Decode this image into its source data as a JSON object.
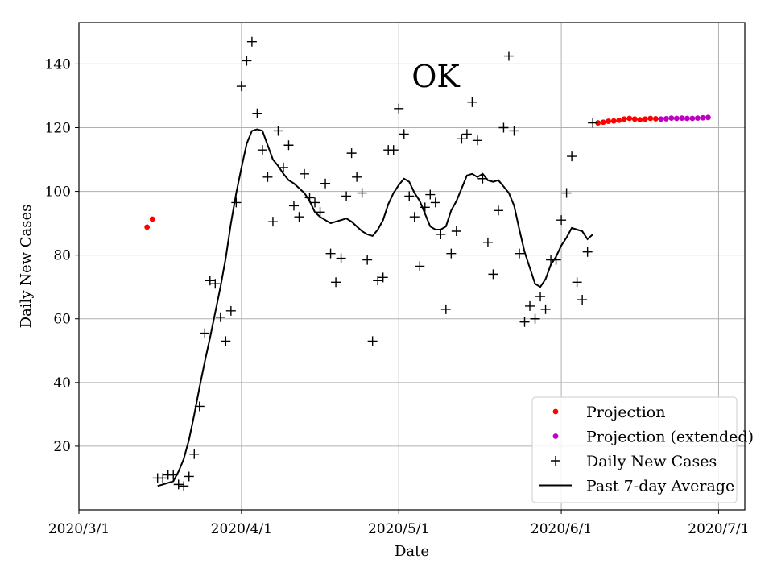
{
  "chart_data": {
    "type": "scatter",
    "title": "OK",
    "xlabel": "Date",
    "ylabel": "Daily New Cases",
    "xlim": [
      "2020-03-01",
      "2020-07-06"
    ],
    "ylim": [
      0,
      153
    ],
    "x_ticks": [
      "2020-03-01",
      "2020-04-01",
      "2020-05-01",
      "2020-06-01",
      "2020-07-01"
    ],
    "x_tick_labels": [
      "2020/3/1",
      "2020/4/1",
      "2020/5/1",
      "2020/6/1",
      "2020/7/1"
    ],
    "y_ticks": [
      20,
      40,
      60,
      80,
      100,
      120,
      140
    ],
    "y_tick_labels": [
      "20",
      "40",
      "60",
      "80",
      "100",
      "120",
      "140"
    ],
    "grid": true,
    "legend_position": "bottom-right",
    "series": [
      {
        "name": "Projection",
        "kind": "dots",
        "color": "#ff0000",
        "points": [
          [
            "2020-03-14",
            88.8
          ],
          [
            "2020-03-15",
            91.3
          ],
          [
            "2020-06-08",
            121.5
          ],
          [
            "2020-06-09",
            121.7
          ],
          [
            "2020-06-10",
            122.0
          ],
          [
            "2020-06-11",
            122.1
          ],
          [
            "2020-06-12",
            122.3
          ],
          [
            "2020-06-13",
            122.7
          ],
          [
            "2020-06-14",
            122.9
          ],
          [
            "2020-06-15",
            122.7
          ],
          [
            "2020-06-16",
            122.5
          ],
          [
            "2020-06-17",
            122.7
          ],
          [
            "2020-06-18",
            122.9
          ],
          [
            "2020-06-19",
            122.8
          ]
        ]
      },
      {
        "name": "Projection (extended)",
        "kind": "dots",
        "color": "#bf00bf",
        "points": [
          [
            "2020-06-20",
            122.7
          ],
          [
            "2020-06-21",
            122.8
          ],
          [
            "2020-06-22",
            123.0
          ],
          [
            "2020-06-23",
            122.9
          ],
          [
            "2020-06-24",
            123.0
          ],
          [
            "2020-06-25",
            122.9
          ],
          [
            "2020-06-26",
            122.9
          ],
          [
            "2020-06-27",
            123.0
          ],
          [
            "2020-06-28",
            123.1
          ],
          [
            "2020-06-29",
            123.2
          ]
        ]
      },
      {
        "name": "Daily New Cases",
        "kind": "plus",
        "color": "#000000",
        "points": [
          [
            "2020-03-16",
            10
          ],
          [
            "2020-03-17",
            10
          ],
          [
            "2020-03-18",
            11
          ],
          [
            "2020-03-19",
            11
          ],
          [
            "2020-03-20",
            8
          ],
          [
            "2020-03-21",
            7.5
          ],
          [
            "2020-03-22",
            10.5
          ],
          [
            "2020-03-23",
            17.5
          ],
          [
            "2020-03-24",
            32.5
          ],
          [
            "2020-03-25",
            55.5
          ],
          [
            "2020-03-26",
            72
          ],
          [
            "2020-03-27",
            71
          ],
          [
            "2020-03-28",
            60.5
          ],
          [
            "2020-03-29",
            53
          ],
          [
            "2020-03-30",
            62.5
          ],
          [
            "2020-03-31",
            96.5
          ],
          [
            "2020-04-01",
            133
          ],
          [
            "2020-04-02",
            141
          ],
          [
            "2020-04-03",
            147
          ],
          [
            "2020-04-04",
            124.5
          ],
          [
            "2020-04-05",
            113
          ],
          [
            "2020-04-06",
            104.5
          ],
          [
            "2020-04-07",
            90.5
          ],
          [
            "2020-04-08",
            119
          ],
          [
            "2020-04-09",
            107.5
          ],
          [
            "2020-04-10",
            114.5
          ],
          [
            "2020-04-11",
            95.5
          ],
          [
            "2020-04-12",
            92
          ],
          [
            "2020-04-13",
            105.5
          ],
          [
            "2020-04-14",
            98
          ],
          [
            "2020-04-15",
            96.5
          ],
          [
            "2020-04-16",
            93.5
          ],
          [
            "2020-04-17",
            102.5
          ],
          [
            "2020-04-18",
            80.5
          ],
          [
            "2020-04-19",
            71.5
          ],
          [
            "2020-04-20",
            79
          ],
          [
            "2020-04-21",
            98.5
          ],
          [
            "2020-04-22",
            112
          ],
          [
            "2020-04-23",
            104.5
          ],
          [
            "2020-04-24",
            99.5
          ],
          [
            "2020-04-25",
            78.5
          ],
          [
            "2020-04-26",
            53
          ],
          [
            "2020-04-27",
            72
          ],
          [
            "2020-04-28",
            73
          ],
          [
            "2020-04-29",
            113
          ],
          [
            "2020-04-30",
            113
          ],
          [
            "2020-05-01",
            126
          ],
          [
            "2020-05-02",
            118
          ],
          [
            "2020-05-03",
            98.5
          ],
          [
            "2020-05-04",
            92
          ],
          [
            "2020-05-05",
            76.5
          ],
          [
            "2020-05-06",
            95
          ],
          [
            "2020-05-07",
            99
          ],
          [
            "2020-05-08",
            96.5
          ],
          [
            "2020-05-09",
            86.5
          ],
          [
            "2020-05-10",
            63
          ],
          [
            "2020-05-11",
            80.5
          ],
          [
            "2020-05-12",
            87.5
          ],
          [
            "2020-05-13",
            116.5
          ],
          [
            "2020-05-14",
            118
          ],
          [
            "2020-05-15",
            128
          ],
          [
            "2020-05-16",
            116
          ],
          [
            "2020-05-17",
            104
          ],
          [
            "2020-05-18",
            84
          ],
          [
            "2020-05-19",
            74
          ],
          [
            "2020-05-20",
            94
          ],
          [
            "2020-05-21",
            120
          ],
          [
            "2020-05-22",
            142.5
          ],
          [
            "2020-05-23",
            119
          ],
          [
            "2020-05-24",
            80.5
          ],
          [
            "2020-05-25",
            59
          ],
          [
            "2020-05-26",
            64
          ],
          [
            "2020-05-27",
            60
          ],
          [
            "2020-05-28",
            67
          ],
          [
            "2020-05-29",
            63
          ],
          [
            "2020-05-30",
            78.5
          ],
          [
            "2020-05-31",
            78.5
          ],
          [
            "2020-06-01",
            91
          ],
          [
            "2020-06-02",
            99.5
          ],
          [
            "2020-06-03",
            111
          ],
          [
            "2020-06-04",
            71.5
          ],
          [
            "2020-06-05",
            66
          ],
          [
            "2020-06-06",
            81
          ],
          [
            "2020-06-07",
            121.5
          ]
        ]
      },
      {
        "name": "Past 7-day Average",
        "kind": "line",
        "color": "#000000",
        "points": [
          [
            "2020-03-16",
            7.5
          ],
          [
            "2020-03-17",
            8
          ],
          [
            "2020-03-18",
            8.5
          ],
          [
            "2020-03-19",
            9
          ],
          [
            "2020-03-20",
            12
          ],
          [
            "2020-03-21",
            16
          ],
          [
            "2020-03-22",
            22
          ],
          [
            "2020-03-23",
            30
          ],
          [
            "2020-03-24",
            38.5
          ],
          [
            "2020-03-25",
            46.5
          ],
          [
            "2020-03-26",
            54
          ],
          [
            "2020-03-27",
            62
          ],
          [
            "2020-03-28",
            70
          ],
          [
            "2020-03-29",
            79
          ],
          [
            "2020-03-30",
            90
          ],
          [
            "2020-03-31",
            99.5
          ],
          [
            "2020-04-01",
            107.5
          ],
          [
            "2020-04-02",
            115
          ],
          [
            "2020-04-03",
            119
          ],
          [
            "2020-04-04",
            119.5
          ],
          [
            "2020-04-05",
            119
          ],
          [
            "2020-04-06",
            114.5
          ],
          [
            "2020-04-07",
            110
          ],
          [
            "2020-04-08",
            108
          ],
          [
            "2020-04-09",
            105.5
          ],
          [
            "2020-04-10",
            103.5
          ],
          [
            "2020-04-11",
            102.5
          ],
          [
            "2020-04-12",
            101
          ],
          [
            "2020-04-13",
            99.5
          ],
          [
            "2020-04-14",
            97
          ],
          [
            "2020-04-15",
            93.5
          ],
          [
            "2020-04-16",
            92
          ],
          [
            "2020-04-17",
            91
          ],
          [
            "2020-04-18",
            90
          ],
          [
            "2020-04-19",
            90.5
          ],
          [
            "2020-04-20",
            91
          ],
          [
            "2020-04-21",
            91.5
          ],
          [
            "2020-04-22",
            90.5
          ],
          [
            "2020-04-23",
            89
          ],
          [
            "2020-04-24",
            87.5
          ],
          [
            "2020-04-25",
            86.5
          ],
          [
            "2020-04-26",
            86
          ],
          [
            "2020-04-27",
            88
          ],
          [
            "2020-04-28",
            91
          ],
          [
            "2020-04-29",
            96
          ],
          [
            "2020-04-30",
            99.5
          ],
          [
            "2020-05-01",
            102
          ],
          [
            "2020-05-02",
            104
          ],
          [
            "2020-05-03",
            103
          ],
          [
            "2020-05-04",
            99.5
          ],
          [
            "2020-05-05",
            97
          ],
          [
            "2020-05-06",
            93
          ],
          [
            "2020-05-07",
            89
          ],
          [
            "2020-05-08",
            88
          ],
          [
            "2020-05-09",
            88
          ],
          [
            "2020-05-10",
            89
          ],
          [
            "2020-05-11",
            94
          ],
          [
            "2020-05-12",
            97
          ],
          [
            "2020-05-13",
            101
          ],
          [
            "2020-05-14",
            105
          ],
          [
            "2020-05-15",
            105.5
          ],
          [
            "2020-05-16",
            104.5
          ],
          [
            "2020-05-17",
            105.5
          ],
          [
            "2020-05-18",
            103.5
          ],
          [
            "2020-05-19",
            103
          ],
          [
            "2020-05-20",
            103.5
          ],
          [
            "2020-05-21",
            101.5
          ],
          [
            "2020-05-22",
            99.5
          ],
          [
            "2020-05-23",
            95.5
          ],
          [
            "2020-05-24",
            88
          ],
          [
            "2020-05-25",
            81
          ],
          [
            "2020-05-26",
            76
          ],
          [
            "2020-05-27",
            71
          ],
          [
            "2020-05-28",
            70
          ],
          [
            "2020-05-29",
            72.5
          ],
          [
            "2020-05-30",
            77
          ],
          [
            "2020-05-31",
            79.5
          ],
          [
            "2020-06-01",
            83
          ],
          [
            "2020-06-02",
            85.5
          ],
          [
            "2020-06-03",
            88.5
          ],
          [
            "2020-06-04",
            88
          ],
          [
            "2020-06-05",
            87.5
          ],
          [
            "2020-06-06",
            85
          ],
          [
            "2020-06-07",
            86.5
          ]
        ]
      }
    ]
  }
}
